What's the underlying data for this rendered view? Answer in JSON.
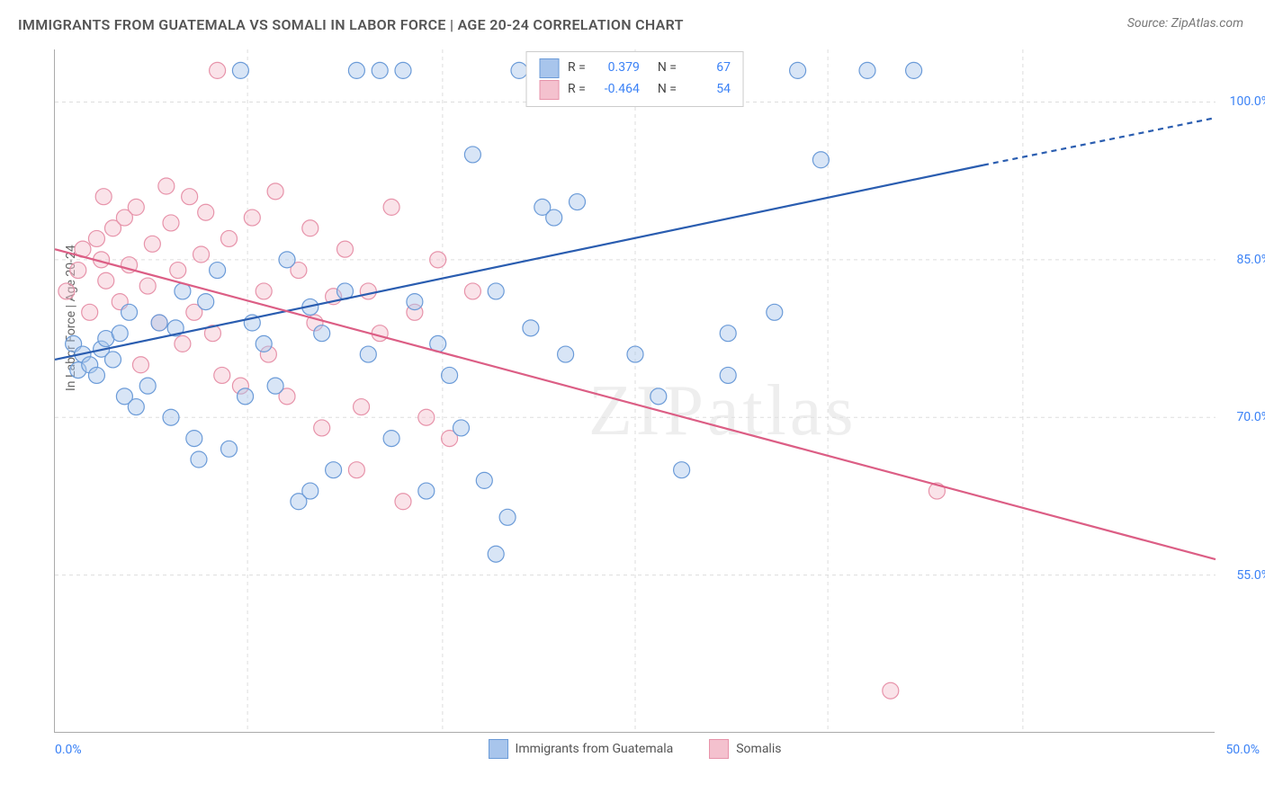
{
  "title": "IMMIGRANTS FROM GUATEMALA VS SOMALI IN LABOR FORCE | AGE 20-24 CORRELATION CHART",
  "source": "Source: ZipAtlas.com",
  "ylabel": "In Labor Force | Age 20-24",
  "watermark": "ZIPatlas",
  "chart": {
    "type": "scatter-with-regression",
    "xlim": [
      0,
      50
    ],
    "ylim": [
      40,
      105
    ],
    "yticks": [
      55,
      70,
      85,
      100
    ],
    "ytick_labels": [
      "55.0%",
      "70.0%",
      "85.0%",
      "100.0%"
    ],
    "xticks_minor": [
      8.3,
      16.7,
      25,
      33.3,
      41.7
    ],
    "xtick_labels": {
      "left": "0.0%",
      "right": "50.0%"
    },
    "background_color": "#ffffff",
    "grid_color": "#dddddd",
    "axis_color": "#aaaaaa",
    "tick_label_color": "#3b82f6",
    "marker_radius": 9,
    "marker_opacity": 0.45,
    "line_width": 2.2
  },
  "series": {
    "guatemala": {
      "label": "Immigrants from Guatemala",
      "fill_color": "#a8c5ec",
      "stroke_color": "#6b9bd8",
      "line_color": "#2a5db0",
      "R": "0.379",
      "N": "67",
      "regression": {
        "x1": 0,
        "y1": 75.5,
        "x2": 40,
        "y2": 94,
        "dash_from_x": 40,
        "dash_to_x": 50,
        "dash_to_y": 98.5
      },
      "points": [
        [
          0.8,
          77
        ],
        [
          1,
          74.5
        ],
        [
          1.2,
          76
        ],
        [
          1.5,
          75
        ],
        [
          1.8,
          74
        ],
        [
          2,
          76.5
        ],
        [
          2.2,
          77.5
        ],
        [
          2.5,
          75.5
        ],
        [
          2.8,
          78
        ],
        [
          3,
          72
        ],
        [
          3.2,
          80
        ],
        [
          3.5,
          71
        ],
        [
          4,
          73
        ],
        [
          4.5,
          79
        ],
        [
          5,
          70
        ],
        [
          5.2,
          78.5
        ],
        [
          5.5,
          82
        ],
        [
          6,
          68
        ],
        [
          6.5,
          81
        ],
        [
          7,
          84
        ],
        [
          7.5,
          67
        ],
        [
          8,
          103
        ],
        [
          8.5,
          79
        ],
        [
          9,
          77
        ],
        [
          9.5,
          73
        ],
        [
          10,
          85
        ],
        [
          10.5,
          62
        ],
        [
          11,
          80.5
        ],
        [
          11.5,
          78
        ],
        [
          12,
          65
        ],
        [
          12.5,
          82
        ],
        [
          13,
          103
        ],
        [
          13.5,
          76
        ],
        [
          14,
          103
        ],
        [
          14.5,
          68
        ],
        [
          15,
          103
        ],
        [
          15.5,
          81
        ],
        [
          16,
          63
        ],
        [
          16.5,
          77
        ],
        [
          17,
          74
        ],
        [
          17.5,
          69
        ],
        [
          18,
          95
        ],
        [
          18.5,
          64
        ],
        [
          19,
          82
        ],
        [
          19.5,
          60.5
        ],
        [
          20,
          103
        ],
        [
          20.5,
          78.5
        ],
        [
          21,
          90
        ],
        [
          21.5,
          89
        ],
        [
          22,
          76
        ],
        [
          24,
          103
        ],
        [
          25,
          76
        ],
        [
          26,
          72
        ],
        [
          27,
          103
        ],
        [
          29,
          74
        ],
        [
          31,
          80
        ],
        [
          32,
          103
        ],
        [
          33,
          94.5
        ],
        [
          35,
          103
        ],
        [
          37,
          103
        ],
        [
          27,
          65
        ],
        [
          19,
          57
        ],
        [
          29,
          78
        ],
        [
          22.5,
          90.5
        ],
        [
          8.2,
          72
        ],
        [
          11,
          63
        ],
        [
          6.2,
          66
        ]
      ]
    },
    "somali": {
      "label": "Somalis",
      "fill_color": "#f4c1ce",
      "stroke_color": "#e793aa",
      "line_color": "#dc5e85",
      "R": "-0.464",
      "N": "54",
      "regression": {
        "x1": 0,
        "y1": 86,
        "x2": 50,
        "y2": 56.5
      },
      "points": [
        [
          0.5,
          82
        ],
        [
          1,
          84
        ],
        [
          1.2,
          86
        ],
        [
          1.5,
          80
        ],
        [
          1.8,
          87
        ],
        [
          2,
          85
        ],
        [
          2.2,
          83
        ],
        [
          2.5,
          88
        ],
        [
          2.8,
          81
        ],
        [
          3,
          89
        ],
        [
          3.2,
          84.5
        ],
        [
          3.5,
          90
        ],
        [
          4,
          82.5
        ],
        [
          4.2,
          86.5
        ],
        [
          4.5,
          79
        ],
        [
          5,
          88.5
        ],
        [
          5.3,
          84
        ],
        [
          5.8,
          91
        ],
        [
          6,
          80
        ],
        [
          6.3,
          85.5
        ],
        [
          6.8,
          78
        ],
        [
          7,
          103
        ],
        [
          7.5,
          87
        ],
        [
          8,
          73
        ],
        [
          8.5,
          89
        ],
        [
          9,
          82
        ],
        [
          9.5,
          91.5
        ],
        [
          10,
          72
        ],
        [
          10.5,
          84
        ],
        [
          11,
          88
        ],
        [
          11.5,
          69
        ],
        [
          12,
          81.5
        ],
        [
          12.5,
          86
        ],
        [
          13,
          65
        ],
        [
          13.5,
          82
        ],
        [
          14,
          78
        ],
        [
          14.5,
          90
        ],
        [
          15,
          62
        ],
        [
          15.5,
          80
        ],
        [
          16,
          70
        ],
        [
          16.5,
          85
        ],
        [
          17,
          68
        ],
        [
          18,
          82
        ],
        [
          4.8,
          92
        ],
        [
          3.7,
          75
        ],
        [
          5.5,
          77
        ],
        [
          7.2,
          74
        ],
        [
          9.2,
          76
        ],
        [
          11.2,
          79
        ],
        [
          13.2,
          71
        ],
        [
          6.5,
          89.5
        ],
        [
          2.1,
          91
        ],
        [
          36,
          44
        ],
        [
          38,
          63
        ]
      ]
    }
  },
  "legend": {
    "rows": [
      {
        "swatch_fill": "#a8c5ec",
        "swatch_stroke": "#6b9bd8",
        "r_label": "R =",
        "r_val": "0.379",
        "n_label": "N =",
        "n_val": "67"
      },
      {
        "swatch_fill": "#f4c1ce",
        "swatch_stroke": "#e793aa",
        "r_label": "R =",
        "r_val": "-0.464",
        "n_label": "N =",
        "n_val": "54"
      }
    ]
  }
}
